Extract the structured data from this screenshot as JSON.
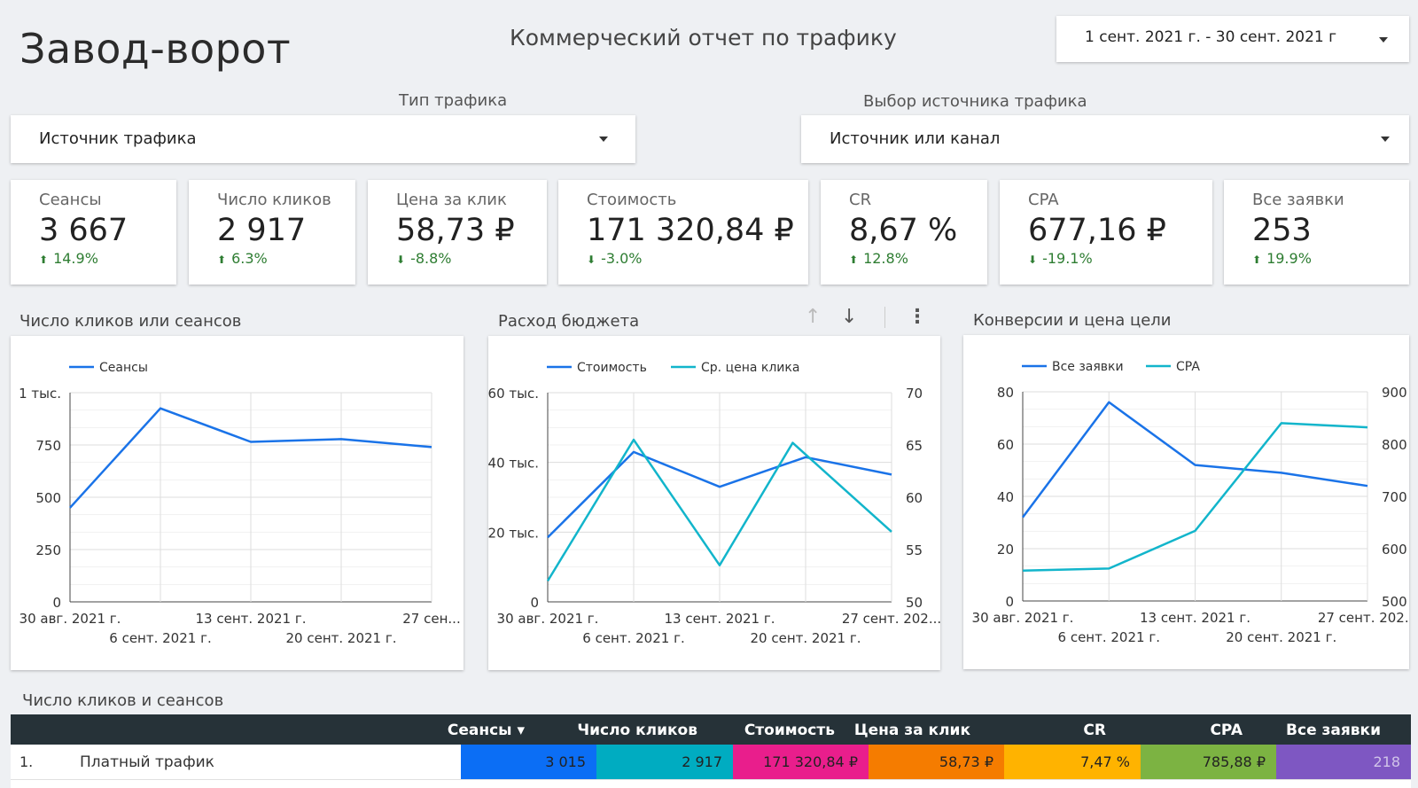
{
  "header": {
    "brand": "Завод-ворот",
    "report_title": "Коммерческий отчет по трафику",
    "date_range": "1 сент. 2021 г. - 30 сент. 2021 г"
  },
  "filters": {
    "traffic_type_label": "Тип трафика",
    "traffic_type_value": "Источник трафика",
    "source_label": "Выбор источника трафика",
    "source_value": "Источник или канал"
  },
  "kpis": [
    {
      "label": "Сеансы",
      "value": "3 667",
      "delta": "14.9%",
      "dir": "up"
    },
    {
      "label": "Число кликов",
      "value": "2 917",
      "delta": "6.3%",
      "dir": "up"
    },
    {
      "label": "Цена за клик",
      "value": "58,73 ₽",
      "delta": "-8.8%",
      "dir": "down"
    },
    {
      "label": "Стоимость",
      "value": "171 320,84 ₽",
      "delta": "-3.0%",
      "dir": "down"
    },
    {
      "label": "CR",
      "value": "8,67 %",
      "delta": "12.8%",
      "dir": "up"
    },
    {
      "label": "CPA",
      "value": "677,16 ₽",
      "delta": "-19.1%",
      "dir": "down"
    },
    {
      "label": "Все заявки",
      "value": "253",
      "delta": "19.9%",
      "dir": "up"
    }
  ],
  "colors": {
    "series_primary": "#1a73e8",
    "series_secondary": "#12b5cb",
    "positive": "#2e7d32",
    "table_header": "#263238"
  },
  "icons": {
    "date_caret": "chevron-down-icon",
    "sort_up": "arrow-up-icon",
    "sort_down": "arrow-down-icon",
    "more": "more-vert-icon"
  },
  "chart_data": [
    {
      "type": "line",
      "title": "Число кликов или сеансов",
      "x_tick_labels": [
        "30 авг. 2021 г.",
        "6 сент. 2021 г.",
        "13 сент. 2021 г.",
        "20 сент. 2021 г.",
        "27 сен..."
      ],
      "x": [
        "30 авг. 2021 г.",
        "6 сент. 2021 г.",
        "13 сент. 2021 г.",
        "20 сент. 2021 г.",
        "27 сент. 2021 г."
      ],
      "series": [
        {
          "name": "Сеансы",
          "values": [
            450,
            925,
            765,
            778,
            740
          ],
          "axis": "left"
        }
      ],
      "ylim": [
        0,
        1000
      ],
      "y_ticks": [
        0,
        250,
        500,
        750,
        1000
      ],
      "y_tick_labels": [
        "0",
        "250",
        "500",
        "750",
        "1 тыс."
      ],
      "legend": "top-left",
      "grid": true
    },
    {
      "type": "line",
      "title": "Расход бюджета",
      "x_tick_labels": [
        "30 авг. 2021 г.",
        "6 сент. 2021 г.",
        "13 сент. 2021 г.",
        "20 сент. 2021 г.",
        "27 сент. 202..."
      ],
      "x": [
        "30 авг. 2021 г.",
        "6 сент. 2021 г.",
        "13 сент. 2021 г.",
        "20 сент. 2021 г.",
        "27 сент. 2021 г."
      ],
      "series": [
        {
          "name": "Стоимость",
          "values": [
            18500,
            43000,
            33000,
            41500,
            36500
          ],
          "axis": "left"
        },
        {
          "name": "Ср. цена клика",
          "values": [
            52,
            65.5,
            53.5,
            65.2,
            56.7
          ],
          "axis": "right"
        }
      ],
      "x_positions": [
        [
          0,
          1,
          2,
          3,
          3.6
        ],
        [
          0,
          1,
          2,
          2.85,
          3.6
        ]
      ],
      "ylim": [
        0,
        60000
      ],
      "y_ticks": [
        0,
        20000,
        40000,
        60000
      ],
      "y_tick_labels": [
        "0",
        "20 тыс.",
        "40 тыс.",
        "60 тыс."
      ],
      "y2lim": [
        50,
        70
      ],
      "y2_ticks": [
        50,
        55,
        60,
        65,
        70
      ],
      "y2_tick_labels": [
        "50",
        "55",
        "60",
        "65",
        "70"
      ],
      "legend": "top-left",
      "grid": true
    },
    {
      "type": "line",
      "title": "Конверсии и цена цели",
      "x_tick_labels": [
        "30 авг. 2021 г.",
        "6 сент. 2021 г.",
        "13 сент. 2021 г.",
        "20 сент. 2021 г.",
        "27 сент. 202..."
      ],
      "x": [
        "30 авг. 2021 г.",
        "6 сент. 2021 г.",
        "13 сент. 2021 г.",
        "20 сент. 2021 г.",
        "27 сент. 2021 г."
      ],
      "series": [
        {
          "name": "Все заявки",
          "values": [
            32,
            76,
            52,
            49,
            44
          ],
          "axis": "left"
        },
        {
          "name": "CPA",
          "values": [
            558,
            562,
            634,
            840,
            832
          ],
          "axis": "right"
        }
      ],
      "ylim": [
        0,
        80
      ],
      "y_ticks": [
        0,
        20,
        40,
        60,
        80
      ],
      "y_tick_labels": [
        "0",
        "20",
        "40",
        "60",
        "80"
      ],
      "y2lim": [
        500,
        900
      ],
      "y2_ticks": [
        500,
        600,
        700,
        800,
        900
      ],
      "y2_tick_labels": [
        "500",
        "600",
        "700",
        "800",
        "900"
      ],
      "legend": "top-left",
      "grid": true
    }
  ],
  "table": {
    "title": "Число кликов и сеансов",
    "headers": [
      "Сеансы",
      "Число кликов",
      "Стоимость",
      "Цена за клик",
      "CR",
      "CPA",
      "Все заявки"
    ],
    "sort_indicator": "▾",
    "rows": [
      {
        "index": "1.",
        "name": "Платный трафик",
        "cells": [
          "3 015",
          "2 917",
          "171 320,84 ₽",
          "58,73 ₽",
          "7,47 %",
          "785,88 ₽",
          "218"
        ]
      }
    ],
    "cell_colors": [
      "#0b6ef5",
      "#00acc1",
      "#e91e8c",
      "#f57c00",
      "#ffb300",
      "#7cb342",
      "#7e57c2"
    ]
  }
}
